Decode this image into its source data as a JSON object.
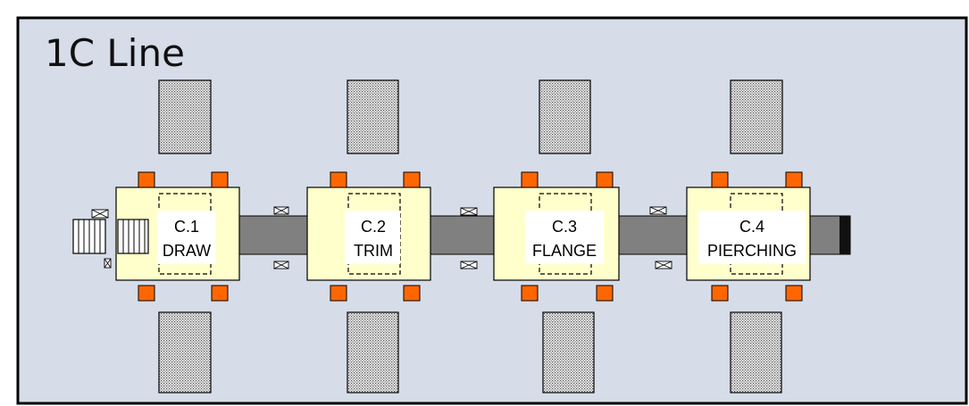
{
  "title": "1C Line",
  "stations": [
    {
      "code": "C.1",
      "name": "DRAW"
    },
    {
      "code": "C.2",
      "name": "TRIM"
    },
    {
      "code": "C.3",
      "name": "FLANGE"
    },
    {
      "code": "C.4",
      "name": "PIERCHING"
    }
  ],
  "colors": {
    "background": "#d6dde9",
    "frame": "#000000",
    "press_bed": "#ffffcc",
    "corner_block": "#ff6600",
    "conveyor": "#808080",
    "conveyor_end": "#111111",
    "die_storage_pattern": "dotted-gray",
    "label_box": "#ffffff"
  },
  "icons": {
    "die_storage": "dotted-rectangle",
    "small_marker": "crossed-box",
    "input_stack": "striped-pallet"
  }
}
